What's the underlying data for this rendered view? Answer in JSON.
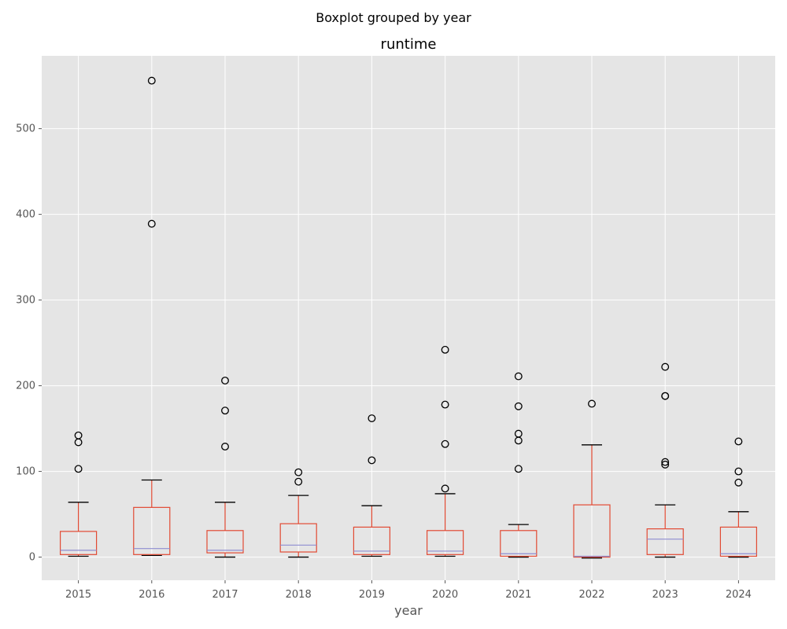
{
  "suptitle": "Boxplot grouped by year",
  "chart_data": {
    "type": "boxplot",
    "title": "runtime",
    "xlabel": "year",
    "ylabel": "",
    "ylim": [
      -27,
      585
    ],
    "yticks": [
      0,
      100,
      200,
      300,
      400,
      500
    ],
    "grid": true,
    "categories": [
      "2015",
      "2016",
      "2017",
      "2018",
      "2019",
      "2020",
      "2021",
      "2022",
      "2023",
      "2024"
    ],
    "boxes": [
      {
        "whislo": 1,
        "q1": 3,
        "med": 8,
        "q3": 30,
        "whishi": 64,
        "fliers": [
          103,
          134,
          142
        ]
      },
      {
        "whislo": 2,
        "q1": 3,
        "med": 10,
        "q3": 58,
        "whishi": 90,
        "fliers": [
          389,
          556
        ]
      },
      {
        "whislo": 0,
        "q1": 5,
        "med": 8,
        "q3": 31,
        "whishi": 64,
        "fliers": [
          129,
          171,
          206
        ]
      },
      {
        "whislo": 0,
        "q1": 6,
        "med": 14,
        "q3": 39,
        "whishi": 72,
        "fliers": [
          88,
          99
        ]
      },
      {
        "whislo": 1,
        "q1": 3,
        "med": 7,
        "q3": 35,
        "whishi": 60,
        "fliers": [
          113,
          162
        ]
      },
      {
        "whislo": 1,
        "q1": 3,
        "med": 7,
        "q3": 31,
        "whishi": 74,
        "fliers": [
          80,
          132,
          178,
          242
        ]
      },
      {
        "whislo": 0,
        "q1": 1,
        "med": 4,
        "q3": 31,
        "whishi": 38,
        "fliers": [
          103,
          136,
          144,
          176,
          211
        ]
      },
      {
        "whislo": -1,
        "q1": 0,
        "med": 1,
        "q3": 61,
        "whishi": 131,
        "fliers": [
          179
        ]
      },
      {
        "whislo": 0,
        "q1": 3,
        "med": 21,
        "q3": 33,
        "whishi": 61,
        "fliers": [
          108,
          111,
          188,
          188,
          222
        ]
      },
      {
        "whislo": 0,
        "q1": 1,
        "med": 4,
        "q3": 35,
        "whishi": 53,
        "fliers": [
          87,
          100,
          135
        ]
      }
    ],
    "colors": {
      "background": "#e5e5e5",
      "grid": "#ffffff",
      "box": "#e24a33",
      "median": "#8e8dd0",
      "whisker_cap": "#000000",
      "flier": "#000000",
      "tick_text": "#555555",
      "label_text": "#555555",
      "title_text": "#000000"
    }
  }
}
